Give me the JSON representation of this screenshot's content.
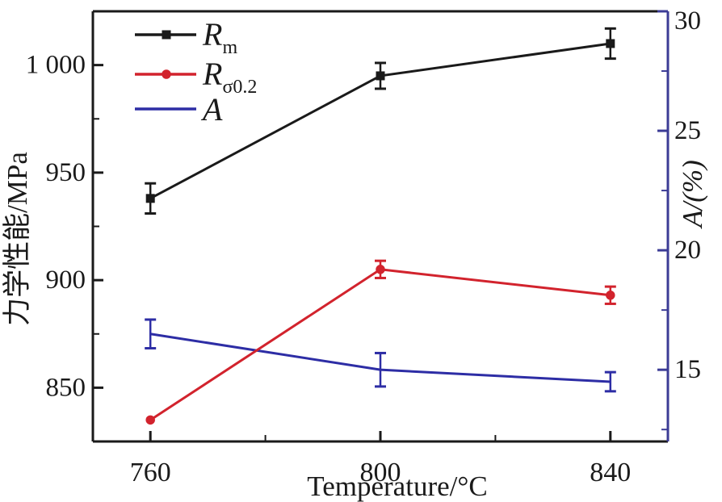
{
  "chart_data": {
    "type": "line",
    "title": "",
    "grid": false,
    "legend_position": "top-left-inside",
    "x_axis": {
      "label": "Temperature/°C",
      "lim": [
        750,
        850
      ],
      "ticks": [
        760,
        800,
        840
      ],
      "tick_labels": [
        "760",
        "800",
        "840"
      ],
      "minor_ticks": [
        780,
        820
      ],
      "color": "#1a1a1a"
    },
    "y_axis_left": {
      "label": "力学性能/MPa",
      "lim": [
        825,
        1025
      ],
      "ticks": [
        850,
        900,
        950,
        1000
      ],
      "tick_labels": [
        "850",
        "900",
        "950",
        "1 000"
      ],
      "minor_ticks": [
        875,
        925,
        975
      ],
      "color": "#1a1a1a"
    },
    "y_axis_right": {
      "label": "A/(%)",
      "lim": [
        12,
        30
      ],
      "ticks": [
        15,
        20,
        25,
        30
      ],
      "tick_labels": [
        "15",
        "20",
        "25",
        "30"
      ],
      "minor_ticks": [
        12.5,
        17.5,
        22.5,
        27.5
      ],
      "color": "#3c3c96"
    },
    "series": [
      {
        "name": "Rm",
        "legend": {
          "main": "R",
          "sub": "m"
        },
        "axis": "left",
        "color": "#1a1a1a",
        "marker": "square",
        "x": [
          760,
          800,
          840
        ],
        "y": [
          938,
          995,
          1010
        ],
        "yerr": [
          7,
          6,
          7
        ]
      },
      {
        "name": "Rsigma0.2",
        "legend": {
          "main": "R",
          "sub": "σ0.2"
        },
        "axis": "left",
        "color": "#d2232d",
        "marker": "circle",
        "x": [
          760,
          800,
          840
        ],
        "y": [
          835,
          905,
          893
        ],
        "yerr": [
          0,
          4,
          4
        ]
      },
      {
        "name": "A",
        "legend": {
          "main": "A",
          "sub": ""
        },
        "axis": "right",
        "color": "#2d2da5",
        "marker": "none",
        "x": [
          760,
          800,
          840
        ],
        "y": [
          16.5,
          15.0,
          14.5
        ],
        "yerr": [
          0.6,
          0.7,
          0.4
        ]
      }
    ]
  }
}
